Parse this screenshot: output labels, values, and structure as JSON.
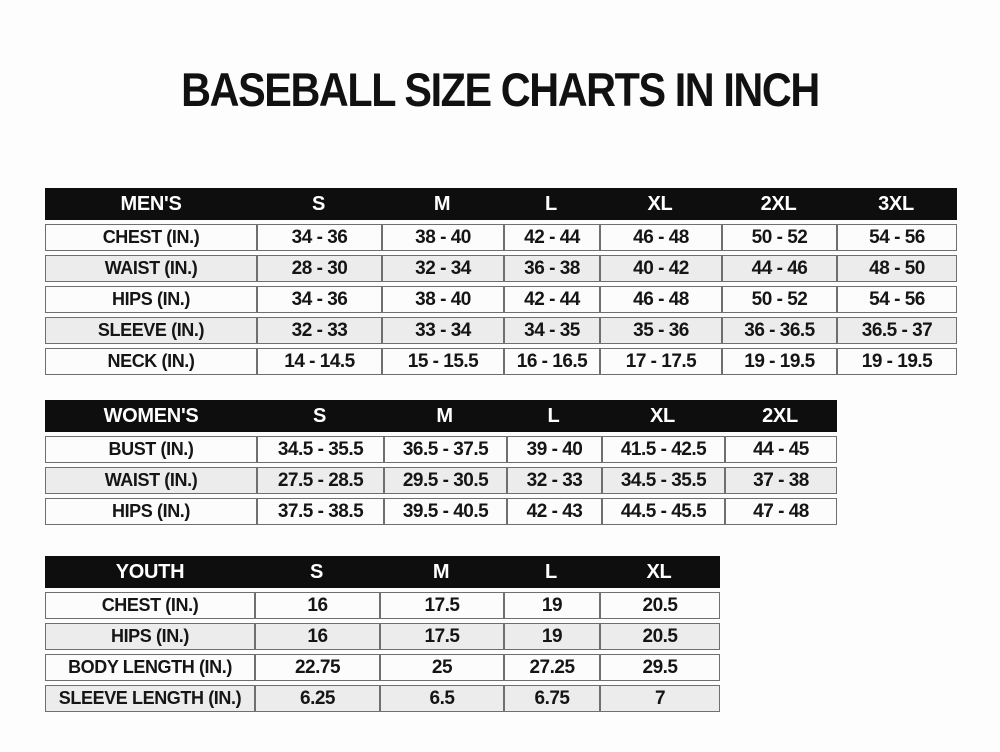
{
  "page": {
    "title": "BASEBALL SIZE CHARTS IN INCH"
  },
  "chart_data": [
    {
      "type": "table",
      "title": "MEN'S",
      "header": [
        "MEN'S",
        "S",
        "M",
        "L",
        "XL",
        "2XL",
        "3XL"
      ],
      "rows": [
        {
          "label": "CHEST (IN.)",
          "values": [
            "34 - 36",
            "38 - 40",
            "42 - 44",
            "46 - 48",
            "50 - 52",
            "54 - 56"
          ]
        },
        {
          "label": "WAIST (IN.)",
          "values": [
            "28 - 30",
            "32 - 34",
            "36 - 38",
            "40 - 42",
            "44 - 46",
            "48 - 50"
          ]
        },
        {
          "label": "HIPS (IN.)",
          "values": [
            "34 - 36",
            "38 - 40",
            "42 - 44",
            "46 - 48",
            "50 - 52",
            "54 - 56"
          ]
        },
        {
          "label": "SLEEVE (IN.)",
          "values": [
            "32 - 33",
            "33 - 34",
            "34 - 35",
            "35 - 36",
            "36 - 36.5",
            "36.5 - 37"
          ]
        },
        {
          "label": "NECK (IN.)",
          "values": [
            "14 - 14.5",
            "15 - 15.5",
            "16 - 16.5",
            "17 - 17.5",
            "19 - 19.5",
            "19 - 19.5"
          ]
        }
      ]
    },
    {
      "type": "table",
      "title": "WOMEN'S",
      "header": [
        "WOMEN'S",
        "S",
        "M",
        "L",
        "XL",
        "2XL"
      ],
      "rows": [
        {
          "label": "BUST (IN.)",
          "values": [
            "34.5 - 35.5",
            "36.5 - 37.5",
            "39 - 40",
            "41.5 - 42.5",
            "44 - 45"
          ]
        },
        {
          "label": "WAIST (IN.)",
          "values": [
            "27.5 - 28.5",
            "29.5 - 30.5",
            "32 - 33",
            "34.5 - 35.5",
            "37 - 38"
          ]
        },
        {
          "label": "HIPS (IN.)",
          "values": [
            "37.5 - 38.5",
            "39.5 - 40.5",
            "42 - 43",
            "44.5 - 45.5",
            "47 - 48"
          ]
        }
      ]
    },
    {
      "type": "table",
      "title": "YOUTH",
      "header": [
        "YOUTH",
        "S",
        "M",
        "L",
        "XL"
      ],
      "rows": [
        {
          "label": "CHEST (IN.)",
          "values": [
            "16",
            "17.5",
            "19",
            "20.5"
          ]
        },
        {
          "label": "HIPS (IN.)",
          "values": [
            "16",
            "17.5",
            "19",
            "20.5"
          ]
        },
        {
          "label": "BODY LENGTH (IN.)",
          "values": [
            "22.75",
            "25",
            "27.25",
            "29.5"
          ]
        },
        {
          "label": "SLEEVE LENGTH (IN.)",
          "values": [
            "6.25",
            "6.5",
            "6.75",
            "7"
          ]
        }
      ]
    }
  ],
  "colors": {
    "page_bg": "#fdfdfd",
    "title_color": "#111111",
    "header_bg": "#0e0e0e",
    "header_text": "#ffffff",
    "row_bg": "#fcfcfc",
    "row_alt_bg": "#ececec",
    "border": "#6f6f6f",
    "text": "#151515"
  }
}
